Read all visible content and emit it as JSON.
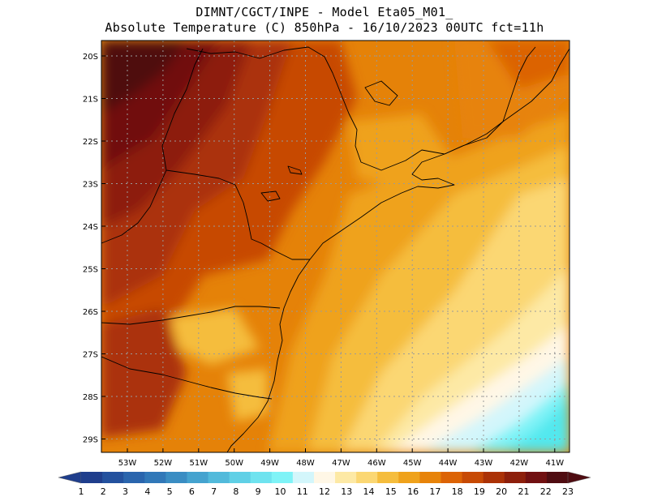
{
  "title": {
    "line1": "DIMNT/CGCT/INPE -  Model Eta05_M01_",
    "line2": "Absolute Temperature (C) 850hPa -  16/10/2023 00UTC fct=11h"
  },
  "axes": {
    "lat_labels": [
      "20S",
      "21S",
      "22S",
      "23S",
      "24S",
      "25S",
      "26S",
      "27S",
      "28S",
      "29S"
    ],
    "lon_labels": [
      "53W",
      "52W",
      "51W",
      "50W",
      "49W",
      "48W",
      "47W",
      "46W",
      "45W",
      "44W",
      "43W",
      "42W",
      "41W"
    ]
  },
  "colorbar": {
    "labels": [
      "1",
      "2",
      "3",
      "4",
      "5",
      "6",
      "7",
      "8",
      "9",
      "10",
      "11",
      "12",
      "13",
      "14",
      "15",
      "16",
      "17",
      "18",
      "19",
      "20",
      "21",
      "22",
      "23"
    ],
    "colors": [
      "#1f3e8c",
      "#23519e",
      "#2a65ad",
      "#3178b8",
      "#3a8dc3",
      "#45a3cf",
      "#52badb",
      "#60d0e6",
      "#6fe3ef",
      "#7ff3f7",
      "#d3f6fb",
      "#fff7e6",
      "#fde9a5",
      "#fbd773",
      "#f5bd3d",
      "#efa21b",
      "#e78309",
      "#dc6305",
      "#c74a05",
      "#ab3207",
      "#8d1f0b",
      "#711011",
      "#4f0c11"
    ]
  }
}
